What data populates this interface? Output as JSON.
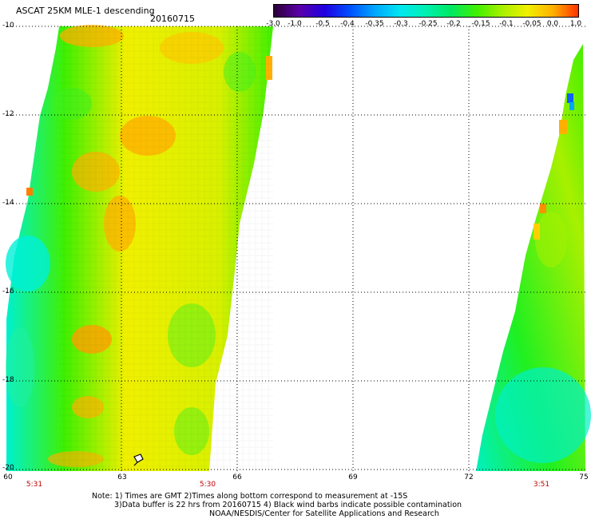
{
  "header": {
    "title": "ASCAT 25KM MLE-1 descending",
    "date": "20160715"
  },
  "colorbar": {
    "labels": [
      "-3.0",
      "-1.0",
      "-0.5",
      "-0.4",
      "-0.35",
      "-0.3",
      "-0.25",
      "-0.2",
      "-0.15",
      "-0.1",
      "-0.05",
      "0.0",
      "1.0"
    ],
    "colors": [
      "#2b0036",
      "#5a00a8",
      "#2000e0",
      "#0050ff",
      "#00a8ff",
      "#00e8f0",
      "#00f0b0",
      "#00e860",
      "#40f000",
      "#a8f000",
      "#f0f000",
      "#ffb000",
      "#ff3000"
    ]
  },
  "map": {
    "lat_labels": [
      "-10",
      "-12",
      "-14",
      "-16",
      "-18",
      "-20"
    ],
    "lon_labels": [
      "60",
      "63",
      "66",
      "69",
      "72",
      "75"
    ],
    "pass_times": [
      "5:31",
      "5:30",
      "3:51"
    ],
    "gridline_color": "#000000"
  },
  "notes": {
    "line1": "Note: 1) Times are GMT 2)Times along bottom correspond to measurement at -15S",
    "line2": "3)Data buffer is 22 hrs from 20160715 4) Black wind barbs indicate possible contamination",
    "line3": "NOAA/NESDIS/Center for Satellite Applications and Research"
  }
}
